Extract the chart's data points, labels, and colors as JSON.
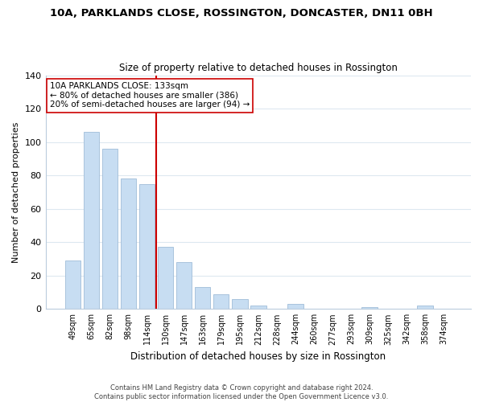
{
  "title_line1": "10A, PARKLANDS CLOSE, ROSSINGTON, DONCASTER, DN11 0BH",
  "title_line2": "Size of property relative to detached houses in Rossington",
  "xlabel": "Distribution of detached houses by size in Rossington",
  "ylabel": "Number of detached properties",
  "bar_labels": [
    "49sqm",
    "65sqm",
    "82sqm",
    "98sqm",
    "114sqm",
    "130sqm",
    "147sqm",
    "163sqm",
    "179sqm",
    "195sqm",
    "212sqm",
    "228sqm",
    "244sqm",
    "260sqm",
    "277sqm",
    "293sqm",
    "309sqm",
    "325sqm",
    "342sqm",
    "358sqm",
    "374sqm"
  ],
  "bar_values": [
    29,
    106,
    96,
    78,
    75,
    37,
    28,
    13,
    9,
    6,
    2,
    0,
    3,
    0,
    0,
    0,
    1,
    0,
    0,
    2,
    0
  ],
  "bar_color": "#c7ddf2",
  "bar_edge_color": "#a0bcd8",
  "vline_index": 5,
  "vline_color": "#cc0000",
  "ylim": [
    0,
    140
  ],
  "yticks": [
    0,
    20,
    40,
    60,
    80,
    100,
    120,
    140
  ],
  "annotation_text_line1": "10A PARKLANDS CLOSE: 133sqm",
  "annotation_text_line2": "← 80% of detached houses are smaller (386)",
  "annotation_text_line3": "20% of semi-detached houses are larger (94) →",
  "annotation_box_color": "#ffffff",
  "annotation_box_edge": "#cc0000",
  "footer_line1": "Contains HM Land Registry data © Crown copyright and database right 2024.",
  "footer_line2": "Contains public sector information licensed under the Open Government Licence v3.0.",
  "background_color": "#ffffff",
  "grid_color": "#dde8f0"
}
